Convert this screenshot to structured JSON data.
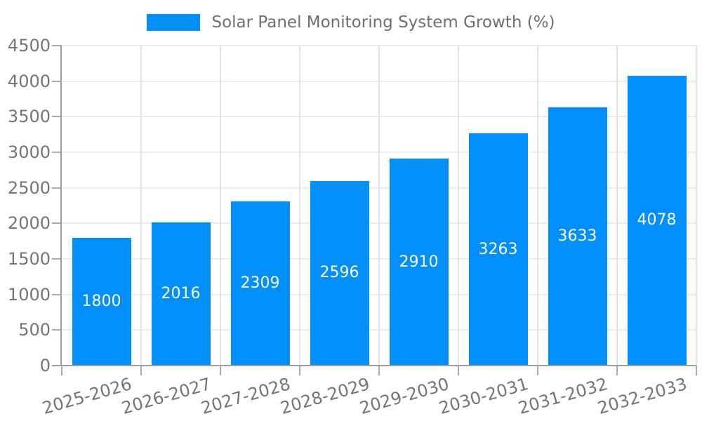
{
  "legend": {
    "label": "Solar Panel Monitoring System Growth (%)"
  },
  "chart_data": {
    "type": "bar",
    "title": "Solar Panel Monitoring System Growth (%)",
    "categories": [
      "2025-2026",
      "2026-2027",
      "2027-2028",
      "2028-2029",
      "2029-2030",
      "2030-2031",
      "2031-2032",
      "2032-2033"
    ],
    "values": [
      1800,
      2016,
      2309,
      2596,
      2910,
      3263,
      3633,
      4078
    ],
    "xlabel": "",
    "ylabel": "",
    "ylim": [
      0,
      4500
    ],
    "ytick_step": 500,
    "grid": true,
    "legend_position": "top-center",
    "x_label_rotation_deg": -16,
    "colors": {
      "bar": "#008FFB",
      "value_label": "#ffffff",
      "tick_label": "#757575",
      "grid_h": "#ececec",
      "grid_v": "#e2e2e2",
      "axis": "#9e9e9e",
      "tick": "#aaaaaa"
    }
  }
}
